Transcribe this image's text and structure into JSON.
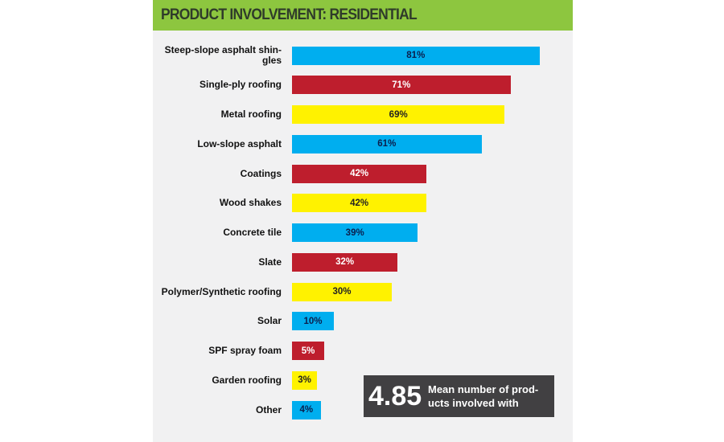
{
  "chart_data": {
    "type": "bar",
    "orientation": "horizontal",
    "title": "PRODUCT INVOLVEMENT: RESIDENTIAL",
    "categories": [
      "Steep-slope asphalt shingles",
      "Single-ply roofing",
      "Metal roofing",
      "Low-slope asphalt",
      "Coatings",
      "Wood shakes",
      "Concrete tile",
      "Slate",
      "Polymer/Synthetic roofing",
      "Solar",
      "SPF spray foam",
      "Garden roofing",
      "Other"
    ],
    "display_labels": [
      "Steep-slope asphalt shin-gles",
      "Single-ply roofing",
      "Metal roofing",
      "Low-slope asphalt",
      "Coatings",
      "Wood shakes",
      "Concrete tile",
      "Slate",
      "Polymer/Synthetic roofing",
      "Solar",
      "SPF spray foam",
      "Garden roofing",
      "Other"
    ],
    "values": [
      81,
      71,
      69,
      61,
      42,
      42,
      39,
      32,
      30,
      10,
      5,
      3,
      4
    ],
    "data_labels": [
      "81%",
      "71%",
      "69%",
      "61%",
      "42%",
      "42%",
      "39%",
      "32%",
      "30%",
      "10%",
      "5%",
      "3%",
      "4%"
    ],
    "unit": "%",
    "colors_cycle": [
      "#00aeef",
      "#be1e2d",
      "#fff200"
    ],
    "grid": false
  },
  "callout": {
    "value": "4.85",
    "text": "Mean number of prod-ucts involved with"
  },
  "colors": {
    "header": "#8dc63f",
    "panel": "#f1f1f2",
    "callout": "#414042"
  }
}
